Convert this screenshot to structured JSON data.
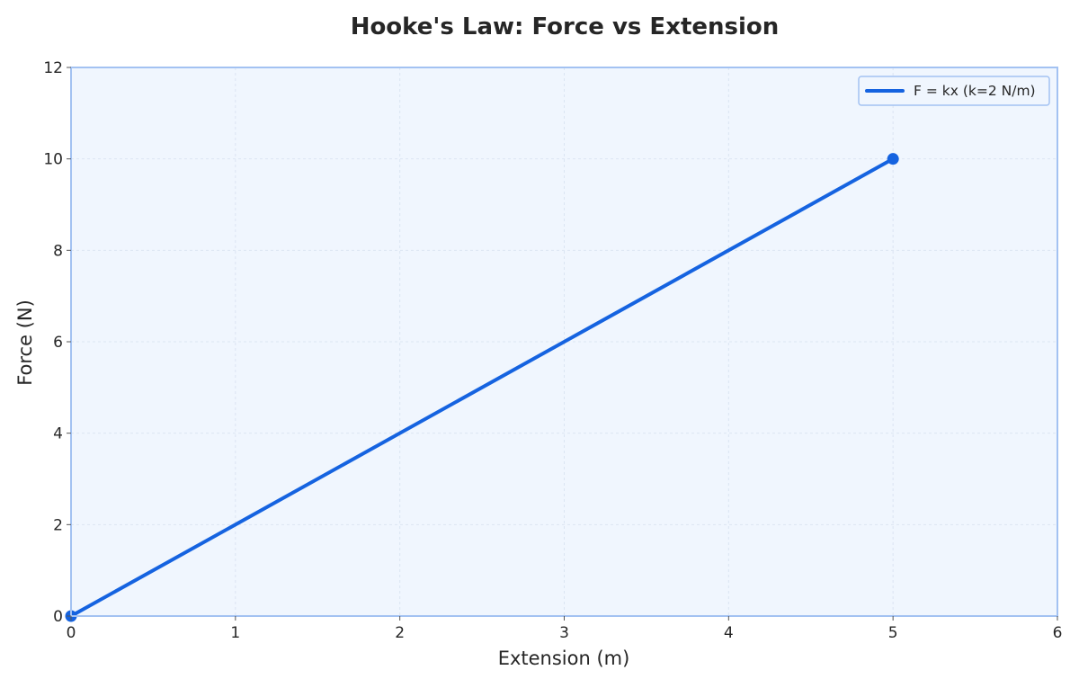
{
  "chart_data": {
    "type": "line",
    "title": "Hooke's Law: Force vs Extension",
    "xlabel": "Extension (m)",
    "ylabel": "Force (N)",
    "xlim": [
      0,
      6
    ],
    "ylim": [
      0,
      12
    ],
    "x_ticks": [
      0,
      1,
      2,
      3,
      4,
      5,
      6
    ],
    "y_ticks": [
      0,
      2,
      4,
      6,
      8,
      10,
      12
    ],
    "x_tick_labels": [
      "0",
      "1",
      "2",
      "3",
      "4",
      "5",
      "6"
    ],
    "y_tick_labels": [
      "0",
      "2",
      "4",
      "6",
      "8",
      "10",
      "12"
    ],
    "grid": true,
    "legend_position": "top-right",
    "series": [
      {
        "name": "F = kx (k=2 N/m)",
        "x": [
          0,
          5
        ],
        "y": [
          0,
          10
        ],
        "color": "#1563e0",
        "markers": true
      }
    ]
  },
  "colors": {
    "plot_background": "#f0f6fe",
    "plot_border": "#a3c2f2",
    "grid": "#dbe5f2",
    "line": "#1563e0"
  }
}
